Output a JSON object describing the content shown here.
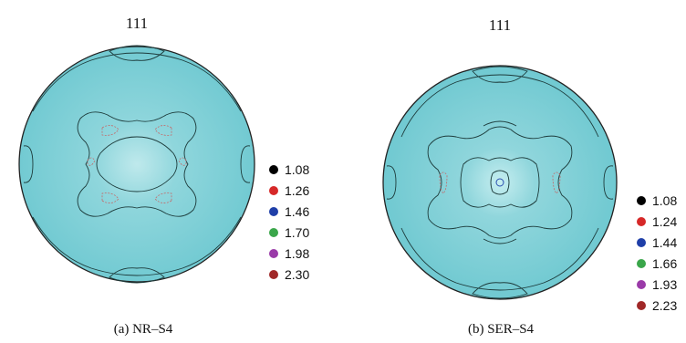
{
  "panels": [
    {
      "title": "111",
      "caption": "(a) NR–S4",
      "legend": [
        {
          "label": "1.08",
          "color": "#000000"
        },
        {
          "label": "1.26",
          "color": "#d62828"
        },
        {
          "label": "1.46",
          "color": "#1f3fa8"
        },
        {
          "label": "1.70",
          "color": "#3aa64a"
        },
        {
          "label": "1.98",
          "color": "#9a3aa8"
        },
        {
          "label": "2.30",
          "color": "#a02828"
        }
      ]
    },
    {
      "title": "111",
      "caption": "(b) SER–S4",
      "legend": [
        {
          "label": "1.08",
          "color": "#000000"
        },
        {
          "label": "1.24",
          "color": "#d62828"
        },
        {
          "label": "1.44",
          "color": "#1f3fa8"
        },
        {
          "label": "1.66",
          "color": "#3aa64a"
        },
        {
          "label": "1.93",
          "color": "#9a3aa8"
        },
        {
          "label": "2.23",
          "color": "#a02828"
        }
      ]
    }
  ],
  "colors": {
    "disk": "#75ccd4",
    "disk_light": "#a9e2e6",
    "outline": "#222222"
  }
}
